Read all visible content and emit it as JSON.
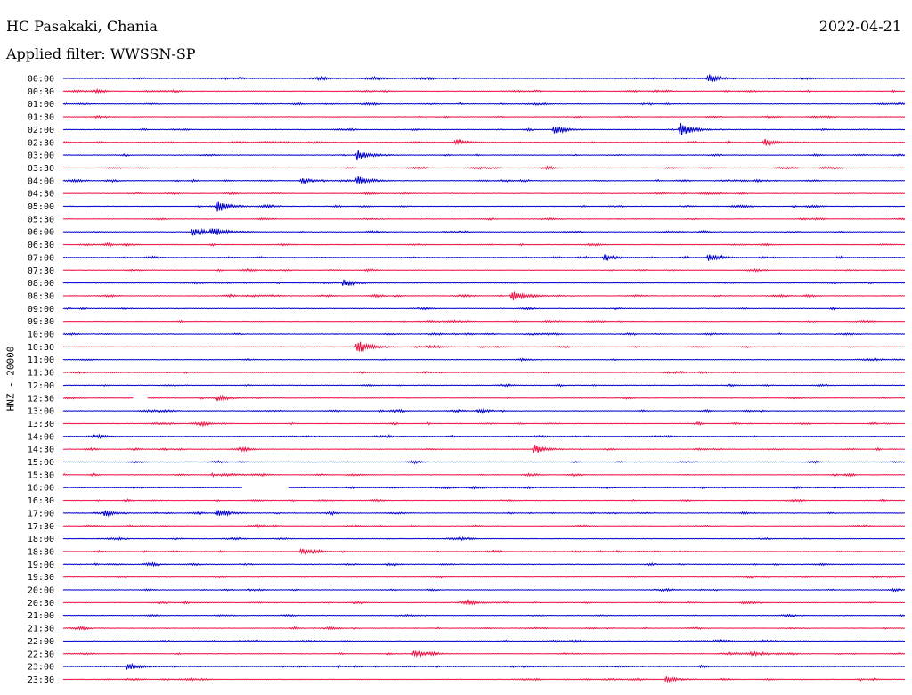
{
  "header": {
    "station": "HC Pasakaki, Chania",
    "filter": "Applied filter: WWSSN-SP",
    "date": "2022-04-21"
  },
  "chart_data": {
    "type": "line",
    "title": "HC Pasakaki, Chania",
    "subtitle": "Applied filter: WWSSN-SP",
    "date": "2022-04-21",
    "ylabel": "HNZ - 20000",
    "xlabel": "",
    "row_labels": [
      "00:00",
      "00:30",
      "01:00",
      "01:30",
      "02:00",
      "02:30",
      "03:00",
      "03:30",
      "04:00",
      "04:30",
      "05:00",
      "05:30",
      "06:00",
      "06:30",
      "07:00",
      "07:30",
      "08:00",
      "08:30",
      "09:00",
      "09:30",
      "10:00",
      "10:30",
      "11:00",
      "11:30",
      "12:00",
      "12:30",
      "13:00",
      "13:30",
      "14:00",
      "14:30",
      "15:00",
      "15:30",
      "16:00",
      "16:30",
      "17:00",
      "17:30",
      "18:00",
      "18:30",
      "19:00",
      "19:30",
      "20:00",
      "20:30",
      "21:00",
      "21:30",
      "22:00",
      "22:30",
      "23:00",
      "23:30"
    ],
    "series_colors": [
      "#0000cc",
      "#ee1144"
    ],
    "trace_minutes": 30,
    "events": [
      {
        "row": "00:00",
        "minute": 23.0,
        "amplitude": 0.8
      },
      {
        "row": "02:00",
        "minute": 22.0,
        "amplitude": 1.2
      },
      {
        "row": "02:00",
        "minute": 17.5,
        "amplitude": 0.8
      },
      {
        "row": "02:30",
        "minute": 25.0,
        "amplitude": 0.7
      },
      {
        "row": "02:30",
        "minute": 14.0,
        "amplitude": 0.5
      },
      {
        "row": "03:00",
        "minute": 10.5,
        "amplitude": 1.0
      },
      {
        "row": "04:00",
        "minute": 10.5,
        "amplitude": 1.0
      },
      {
        "row": "04:00",
        "minute": 8.5,
        "amplitude": 0.5
      },
      {
        "row": "05:00",
        "minute": 5.5,
        "amplitude": 1.0
      },
      {
        "row": "06:00",
        "minute": 4.6,
        "amplitude": 0.8
      },
      {
        "row": "06:00",
        "minute": 5.3,
        "amplitude": 0.7
      },
      {
        "row": "07:00",
        "minute": 19.3,
        "amplitude": 0.6
      },
      {
        "row": "07:00",
        "minute": 23.0,
        "amplitude": 0.6
      },
      {
        "row": "08:00",
        "minute": 10.0,
        "amplitude": 0.7
      },
      {
        "row": "08:30",
        "minute": 16.0,
        "amplitude": 0.9
      },
      {
        "row": "10:30",
        "minute": 10.5,
        "amplitude": 1.2
      },
      {
        "row": "12:30",
        "minute": 5.5,
        "amplitude": 0.5
      },
      {
        "row": "14:30",
        "minute": 16.8,
        "amplitude": 0.7
      },
      {
        "row": "17:00",
        "minute": 1.5,
        "amplitude": 0.5
      },
      {
        "row": "17:00",
        "minute": 5.5,
        "amplitude": 0.5
      },
      {
        "row": "18:30",
        "minute": 8.5,
        "amplitude": 0.5
      },
      {
        "row": "22:30",
        "minute": 12.5,
        "amplitude": 0.5
      },
      {
        "row": "23:00",
        "minute": 2.3,
        "amplitude": 0.6
      },
      {
        "row": "23:30",
        "minute": 21.5,
        "amplitude": 0.5
      }
    ],
    "gaps": [
      {
        "row": "12:30",
        "start_minute": 2.5,
        "end_minute": 3.0
      },
      {
        "row": "16:00",
        "start_minute": 6.4,
        "end_minute": 8.0
      }
    ],
    "grid": false,
    "legend": "none"
  }
}
